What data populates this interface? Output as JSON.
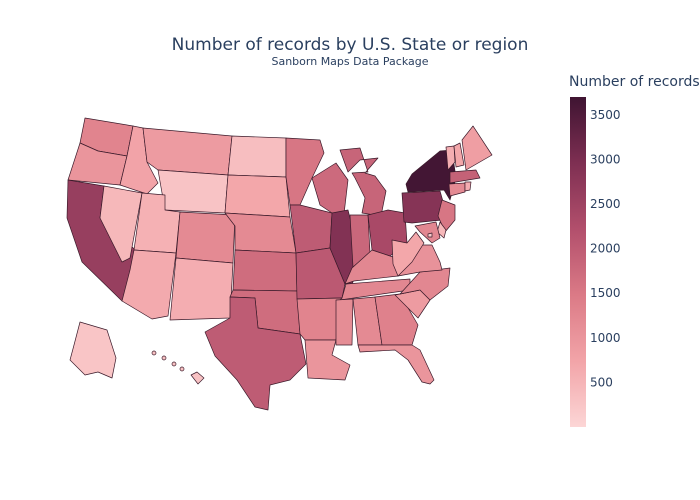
{
  "chart": {
    "title": "Number of records by U.S. State or region",
    "subtitle": "Sanborn Maps Data Package"
  },
  "chart_data": {
    "type": "choropleth",
    "title": "Number of records by U.S. State or region",
    "subtitle": "Sanborn Maps Data Package",
    "colorbar": {
      "title": "Number of records",
      "range": [
        0,
        3700
      ],
      "ticks": [
        "500",
        "1000",
        "1500",
        "2000",
        "2500",
        "3000",
        "3500"
      ],
      "colorscale": [
        "#fcd6d6",
        "#f2a4a8",
        "#db7a86",
        "#b24f6c",
        "#7e2f52",
        "#3f1432"
      ]
    },
    "values": {
      "WA": 1300,
      "OR": 1000,
      "CA": 2600,
      "NV": 450,
      "ID": 750,
      "MT": 900,
      "WY": 280,
      "UT": 550,
      "AZ": 650,
      "CO": 1200,
      "NM": 600,
      "ND": 350,
      "SD": 700,
      "NE": 1200,
      "KS": 1700,
      "OK": 1700,
      "TX": 2000,
      "MN": 1550,
      "IA": 2000,
      "MO": 2050,
      "AR": 1300,
      "LA": 1000,
      "WI": 1750,
      "IL": 2900,
      "MI": 1850,
      "IN": 1800,
      "OH": 2350,
      "KY": 1250,
      "TN": 1250,
      "MS": 1150,
      "AL": 1200,
      "GA": 1350,
      "FL": 1000,
      "SC": 900,
      "NC": 1250,
      "VA": 1050,
      "WV": 700,
      "PA": 2850,
      "NY": 3650,
      "VT": 600,
      "NH": 700,
      "ME": 850,
      "MA": 1900,
      "CT": 1200,
      "RI": 600,
      "NJ": 1550,
      "DE": 450,
      "MD": 1250,
      "AK": 250,
      "HI": 300,
      "DC": 150
    }
  }
}
